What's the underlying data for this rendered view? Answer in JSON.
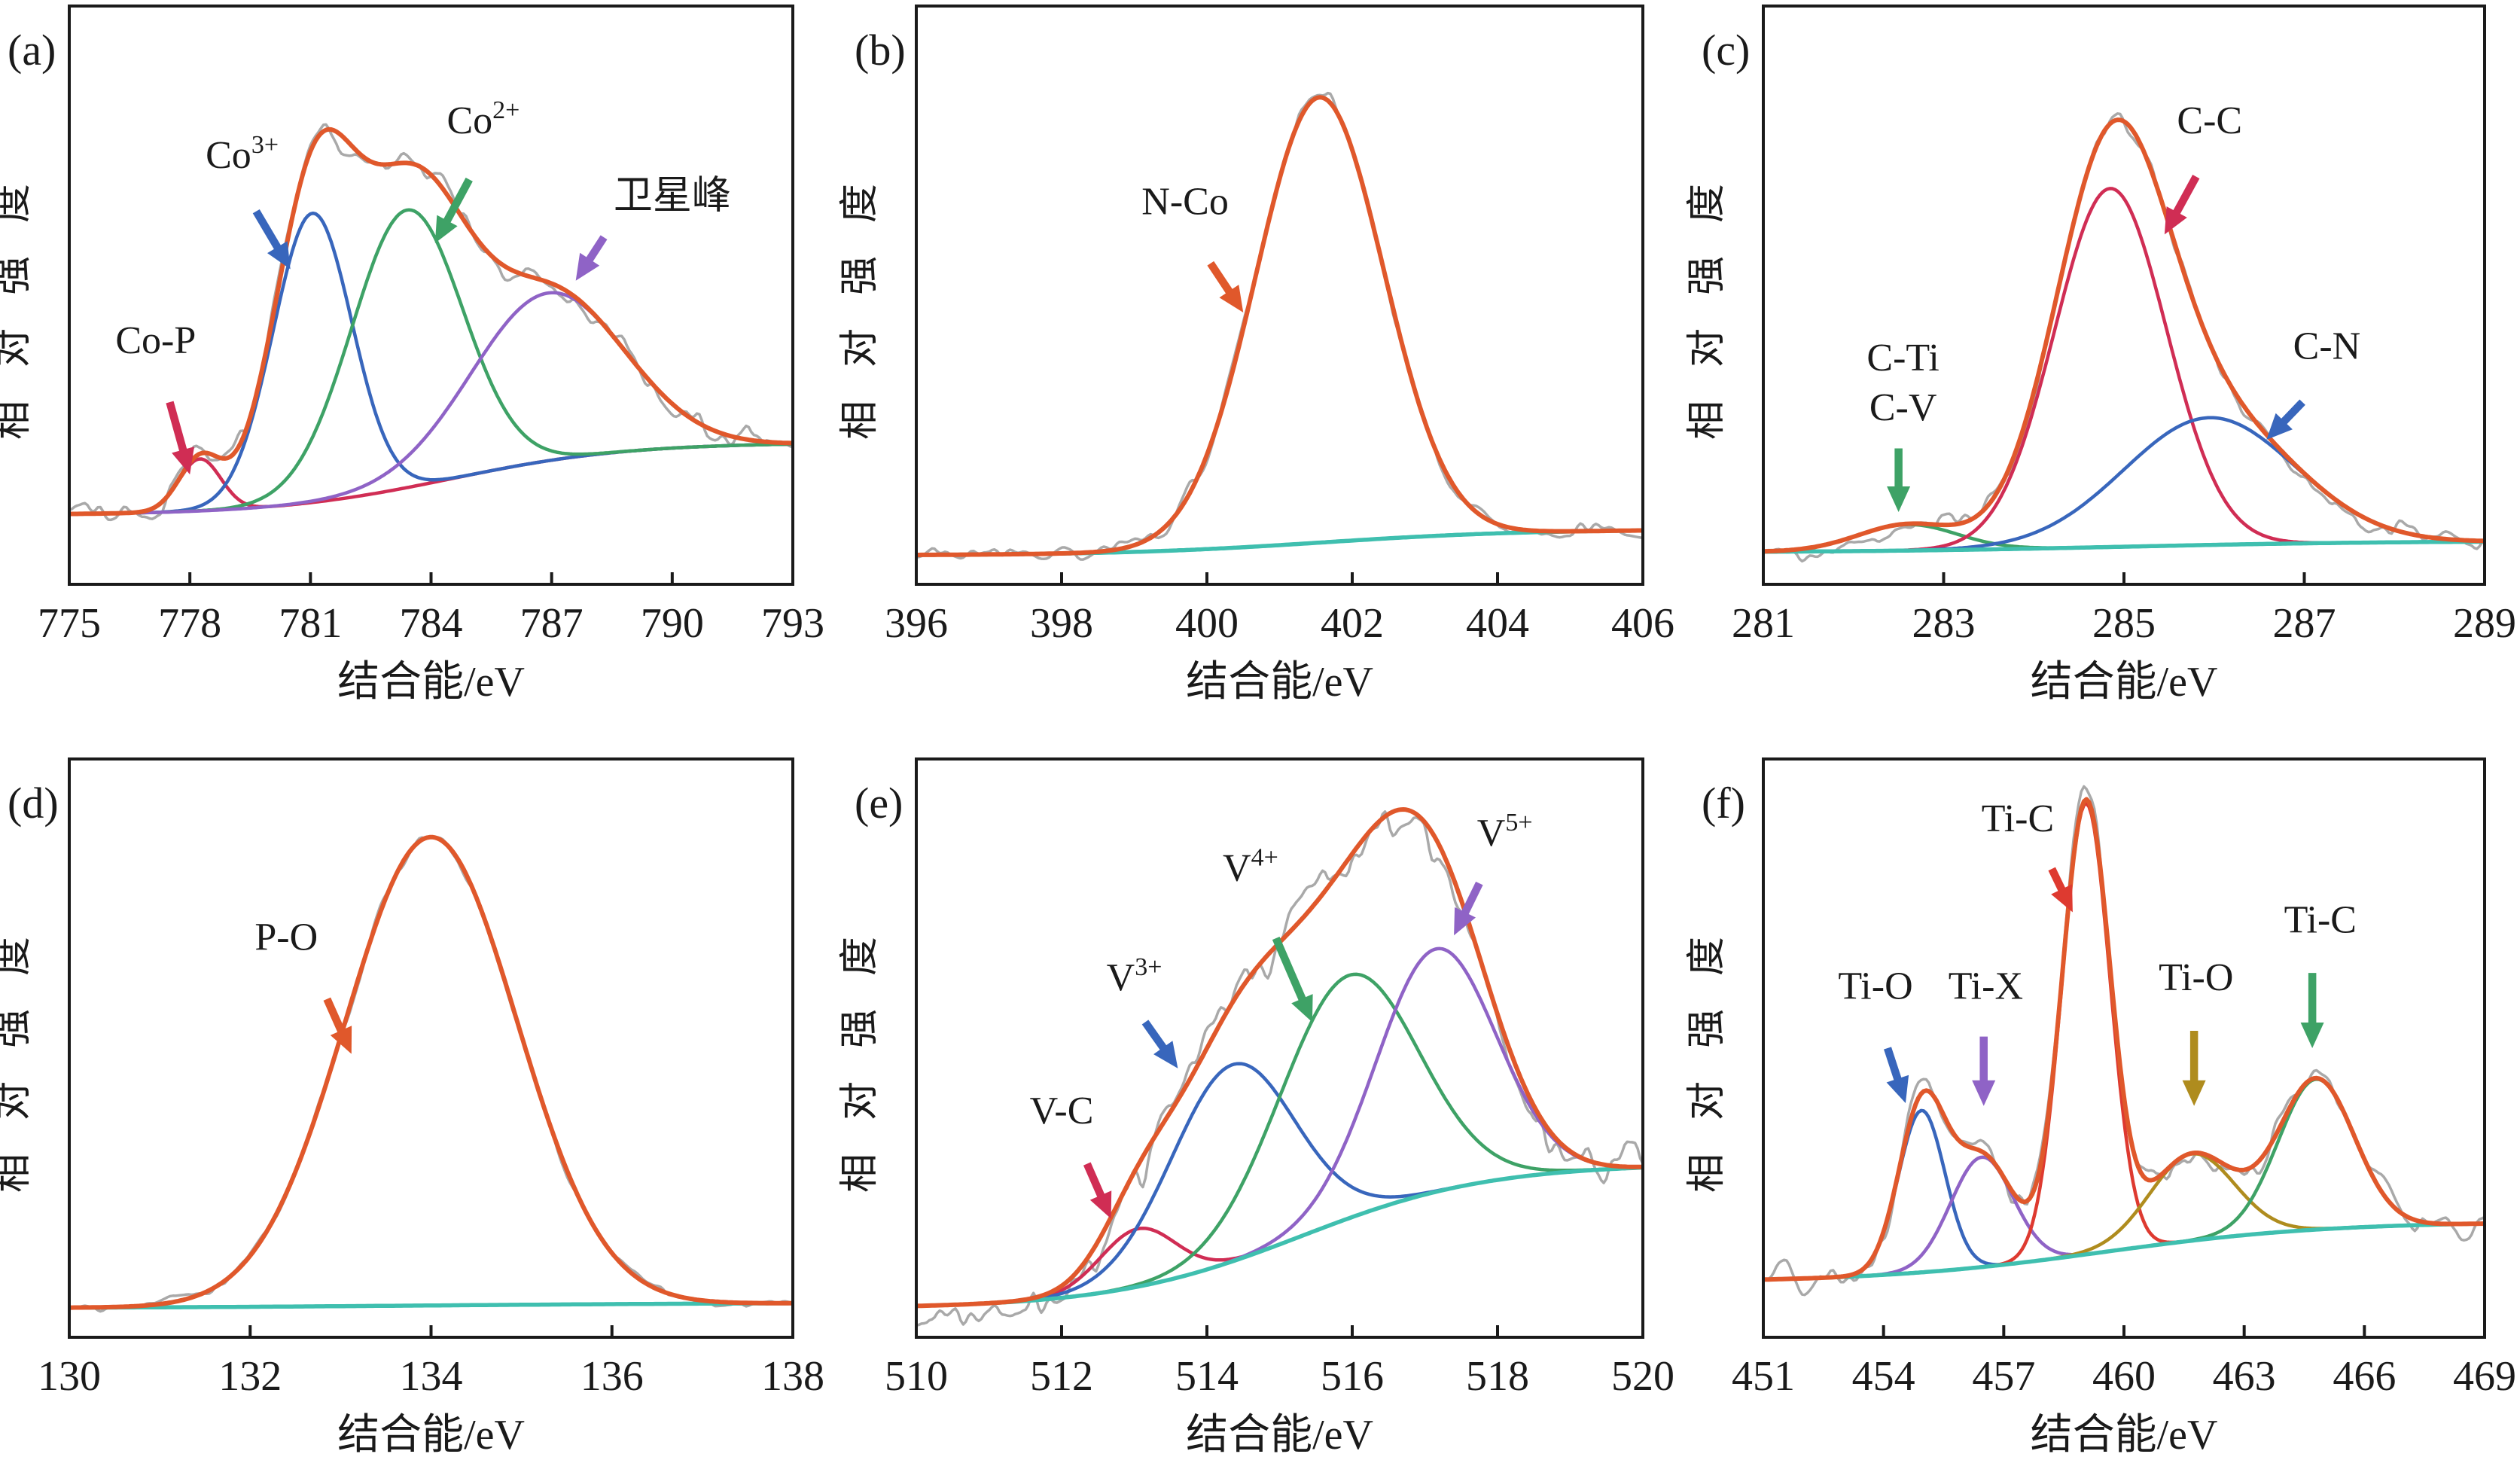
{
  "figure": {
    "description": "XPS spectra, six fitted panels",
    "xlabel": "结合能/eV",
    "ylabel": "相对强度"
  },
  "colors": {
    "axis": "#1a1a1a",
    "text": "#1a1a1a",
    "raw": "#a9a9a9",
    "envelope": "#e0582b",
    "bgline": "#3fbfaf",
    "blue": "#3866bc",
    "green": "#3ea266",
    "purple": "#8f63c6",
    "crimson": "#d02d54",
    "red": "#de3a30",
    "olive": "#af8c1e"
  },
  "chart_data": [
    {
      "id": "a",
      "panel_label": "(a)",
      "type": "line",
      "xlabel": "结合能/eV",
      "ylabel": "相对强度",
      "xmin": 775,
      "xmax": 793,
      "xticks": [
        775,
        778,
        781,
        784,
        787,
        790,
        793
      ],
      "background": {
        "show": false,
        "left": 0.12,
        "right": 0.245,
        "center": 784.5,
        "width": 2.2
      },
      "series": [
        {
          "name": "Co-P",
          "colorKey": "crimson",
          "center": 778.25,
          "sigma": 0.52,
          "amp": 0.09
        },
        {
          "name": "Co3+",
          "colorKey": "blue",
          "center": 781.05,
          "sigma": 0.98,
          "amp": 0.5
        },
        {
          "name": "Co2+",
          "colorKey": "green",
          "center": 783.4,
          "sigma": 1.38,
          "amp": 0.48
        },
        {
          "name": "卫星峰",
          "colorKey": "purple",
          "center": 786.9,
          "sigma": 1.9,
          "amp": 0.29
        }
      ],
      "noise": {
        "amp": 0.012,
        "seed": 5
      },
      "annotations": [
        {
          "lines": [
            [
              {
                "t": "Co-P"
              }
            ]
          ],
          "colorKey": "crimson",
          "x": 777.15,
          "y": 0.4,
          "arrow": [
            777.5,
            0.315,
            778.0,
            0.19
          ]
        },
        {
          "lines": [
            [
              {
                "t": "Co"
              },
              {
                "t": "3+",
                "sup": true
              }
            ]
          ],
          "colorKey": "blue",
          "x": 779.3,
          "y": 0.72,
          "arrow": [
            779.65,
            0.645,
            780.5,
            0.545
          ]
        },
        {
          "lines": [
            [
              {
                "t": "Co"
              },
              {
                "t": "2+",
                "sup": true
              }
            ]
          ],
          "colorKey": "green",
          "x": 785.3,
          "y": 0.78,
          "arrow": [
            784.95,
            0.7,
            784.1,
            0.59
          ]
        },
        {
          "lines": [
            [
              {
                "t": "卫星峰"
              }
            ]
          ],
          "colorKey": "purple",
          "x": 790.0,
          "y": 0.65,
          "arrow": [
            788.3,
            0.6,
            787.6,
            0.525
          ]
        }
      ]
    },
    {
      "id": "b",
      "panel_label": "(b)",
      "type": "line",
      "xlabel": "结合能/eV",
      "ylabel": "相对强度",
      "xmin": 396,
      "xmax": 406,
      "xticks": [
        396,
        398,
        400,
        402,
        404,
        406
      ],
      "background": {
        "show": true,
        "left": 0.05,
        "right": 0.095,
        "center": 401.6,
        "width": 1.4
      },
      "series": [
        {
          "name": "N-Co",
          "colorKey": "envelope",
          "center": 401.55,
          "sigma": 0.88,
          "amp": 0.77,
          "draw": false
        }
      ],
      "noise": {
        "amp": 0.008,
        "seed": 9
      },
      "annotations": [
        {
          "lines": [
            [
              {
                "t": "N-Co"
              }
            ]
          ],
          "colorKey": "envelope",
          "x": 399.7,
          "y": 0.64,
          "arrow": [
            400.05,
            0.555,
            400.5,
            0.47
          ]
        }
      ]
    },
    {
      "id": "c",
      "panel_label": "(c)",
      "type": "line",
      "xlabel": "结合能/eV",
      "ylabel": "相对强度",
      "xmin": 281,
      "xmax": 289,
      "xticks": [
        281,
        283,
        285,
        287,
        289
      ],
      "background": {
        "show": true,
        "left": 0.055,
        "right": 0.075,
        "center": 285.0,
        "width": 1.5
      },
      "series": [
        {
          "name": "C-Ti/C-V",
          "colorKey": "green",
          "center": 282.6,
          "sigma": 0.55,
          "amp": 0.045
        },
        {
          "name": "C-C",
          "colorKey": "crimson",
          "center": 284.85,
          "sigma": 0.62,
          "amp": 0.62
        },
        {
          "name": "C-N",
          "colorKey": "blue",
          "center": 285.95,
          "sigma": 0.95,
          "amp": 0.22
        }
      ],
      "noise": {
        "amp": 0.009,
        "seed": 13
      },
      "annotations": [
        {
          "lines": [
            [
              {
                "t": "C-C"
              }
            ]
          ],
          "colorKey": "crimson",
          "x": 285.95,
          "y": 0.78,
          "arrow": [
            285.8,
            0.705,
            285.45,
            0.605
          ]
        },
        {
          "lines": [
            [
              {
                "t": "C-N"
              }
            ]
          ],
          "colorKey": "blue",
          "x": 287.25,
          "y": 0.39,
          "arrow": [
            286.98,
            0.315,
            286.58,
            0.25
          ]
        },
        {
          "lines": [
            [
              {
                "t": "C-Ti"
              }
            ],
            [
              {
                "t": "C-V"
              }
            ]
          ],
          "colorKey": "green",
          "x": 282.55,
          "y": 0.37,
          "arrow": [
            282.5,
            0.235,
            282.5,
            0.125
          ]
        }
      ]
    },
    {
      "id": "d",
      "panel_label": "(d)",
      "type": "line",
      "xlabel": "结合能/eV",
      "ylabel": "相对强度",
      "xmin": 130,
      "xmax": 138,
      "xticks": [
        130,
        132,
        134,
        136,
        138
      ],
      "background": {
        "show": true,
        "left": 0.05,
        "right": 0.06,
        "center": 134.0,
        "width": 2.0
      },
      "series": [
        {
          "name": "P-O",
          "colorKey": "envelope",
          "center": 134.0,
          "sigma": 0.95,
          "amp": 0.81,
          "draw": false
        }
      ],
      "noise": {
        "amp": 0.005,
        "seed": 21
      },
      "annotations": [
        {
          "lines": [
            [
              {
                "t": "P-O"
              }
            ]
          ],
          "colorKey": "envelope",
          "x": 132.4,
          "y": 0.67,
          "arrow": [
            132.85,
            0.585,
            133.12,
            0.49
          ]
        }
      ]
    },
    {
      "id": "e",
      "panel_label": "(e)",
      "type": "line",
      "xlabel": "结合能/eV",
      "ylabel": "相对强度",
      "xmin": 510,
      "xmax": 520,
      "xticks": [
        510,
        512,
        514,
        516,
        518,
        520
      ],
      "background": {
        "show": true,
        "left": 0.05,
        "right": 0.3,
        "center": 515.3,
        "width": 1.3
      },
      "series": [
        {
          "name": "V-C",
          "colorKey": "crimson",
          "center": 513.05,
          "sigma": 0.52,
          "amp": 0.1
        },
        {
          "name": "V3+",
          "colorKey": "blue",
          "center": 514.35,
          "sigma": 0.85,
          "amp": 0.34
        },
        {
          "name": "V4+",
          "colorKey": "green",
          "center": 515.95,
          "sigma": 0.95,
          "amp": 0.42
        },
        {
          "name": "V5+",
          "colorKey": "purple",
          "center": 517.15,
          "sigma": 0.82,
          "amp": 0.42
        }
      ],
      "noise": {
        "amp": 0.021,
        "seed": 29
      },
      "annotations": [
        {
          "lines": [
            [
              {
                "t": "V-C"
              }
            ]
          ],
          "colorKey": "crimson",
          "x": 512.0,
          "y": 0.37,
          "arrow": [
            512.35,
            0.3,
            512.68,
            0.205
          ]
        },
        {
          "lines": [
            [
              {
                "t": "V"
              },
              {
                "t": "3+",
                "sup": true
              }
            ]
          ],
          "colorKey": "blue",
          "x": 513.0,
          "y": 0.6,
          "arrow": [
            513.15,
            0.545,
            513.6,
            0.465
          ]
        },
        {
          "lines": [
            [
              {
                "t": "V"
              },
              {
                "t": "4+",
                "sup": true
              }
            ]
          ],
          "colorKey": "green",
          "x": 514.6,
          "y": 0.79,
          "arrow": [
            514.95,
            0.69,
            515.45,
            0.545
          ]
        },
        {
          "lines": [
            [
              {
                "t": "V"
              },
              {
                "t": "5+",
                "sup": true
              }
            ]
          ],
          "colorKey": "purple",
          "x": 518.1,
          "y": 0.85,
          "arrow": [
            517.75,
            0.785,
            517.4,
            0.695
          ]
        }
      ]
    },
    {
      "id": "f",
      "panel_label": "(f)",
      "type": "line",
      "xlabel": "结合能/eV",
      "ylabel": "相对强度",
      "xmin": 451,
      "xmax": 469,
      "xticks": [
        451,
        454,
        457,
        460,
        463,
        466,
        469
      ],
      "background": {
        "show": true,
        "left": 0.095,
        "right": 0.2,
        "center": 459.5,
        "width": 2.8
      },
      "series": [
        {
          "name": "Ti-O",
          "colorKey": "blue",
          "center": 454.95,
          "sigma": 0.58,
          "amp": 0.28
        },
        {
          "name": "Ti-X",
          "colorKey": "purple",
          "center": 456.45,
          "sigma": 0.78,
          "amp": 0.19
        },
        {
          "name": "Ti-C",
          "colorKey": "red",
          "center": 459.05,
          "sigma": 0.6,
          "amp": 0.78
        },
        {
          "name": "Ti-O (2)",
          "colorKey": "olive",
          "center": 461.7,
          "sigma": 1.05,
          "amp": 0.15
        },
        {
          "name": "Ti-C (2)",
          "colorKey": "green",
          "center": 464.8,
          "sigma": 0.95,
          "amp": 0.26
        }
      ],
      "noise": {
        "amp": 0.014,
        "seed": 37
      },
      "annotations": [
        {
          "lines": [
            [
              {
                "t": "Ti-O"
              }
            ]
          ],
          "colorKey": "blue",
          "x": 453.8,
          "y": 0.585,
          "arrow": [
            454.1,
            0.5,
            454.55,
            0.405
          ]
        },
        {
          "lines": [
            [
              {
                "t": "Ti-X"
              }
            ]
          ],
          "colorKey": "purple",
          "x": 456.55,
          "y": 0.585,
          "arrow": [
            456.5,
            0.52,
            456.5,
            0.4
          ]
        },
        {
          "lines": [
            [
              {
                "t": "Ti-C"
              }
            ]
          ],
          "colorKey": "red",
          "x": 457.35,
          "y": 0.875,
          "arrow": [
            458.2,
            0.81,
            458.72,
            0.735
          ]
        },
        {
          "lines": [
            [
              {
                "t": "Ti-O"
              }
            ]
          ],
          "colorKey": "olive",
          "x": 461.8,
          "y": 0.6,
          "arrow": [
            461.75,
            0.53,
            461.75,
            0.4
          ]
        },
        {
          "lines": [
            [
              {
                "t": "Ti-C"
              }
            ]
          ],
          "colorKey": "green",
          "x": 464.9,
          "y": 0.7,
          "arrow": [
            464.7,
            0.63,
            464.7,
            0.5
          ]
        }
      ]
    }
  ]
}
